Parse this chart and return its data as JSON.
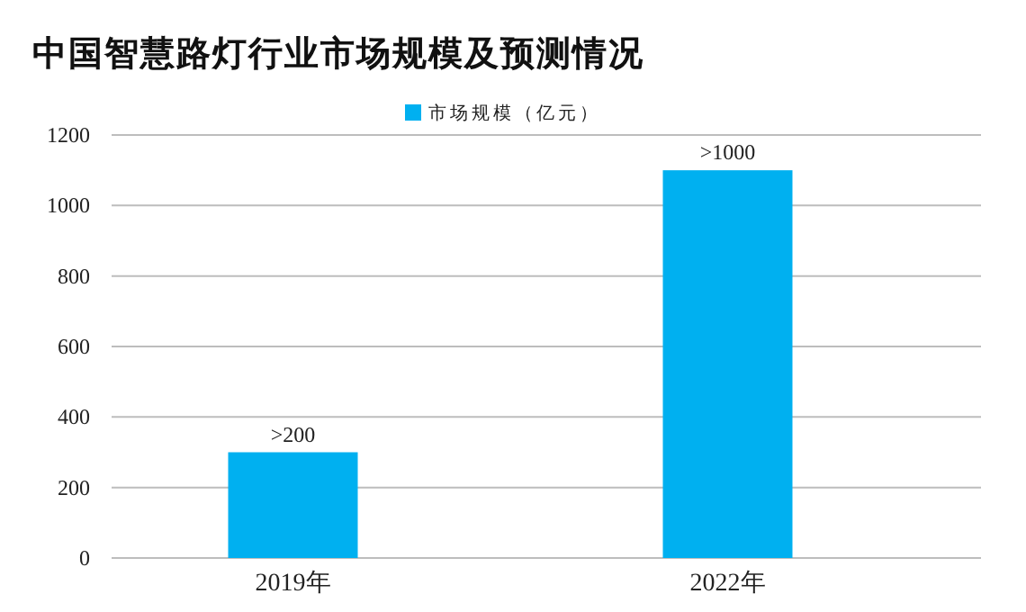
{
  "chart_data": {
    "type": "bar",
    "title": "中国智慧路灯行业市场规模及预测情况",
    "categories": [
      "2019年",
      "2022年"
    ],
    "series": [
      {
        "name": "市场规模（亿元）",
        "color": "#00b0f0",
        "values": [
          300,
          1100
        ],
        "value_labels": [
          ">200",
          ">1000"
        ]
      }
    ],
    "ylim": [
      0,
      1200
    ],
    "yticks": [
      0,
      200,
      400,
      600,
      800,
      1000,
      1200
    ],
    "grid": "y",
    "legend": "top"
  }
}
